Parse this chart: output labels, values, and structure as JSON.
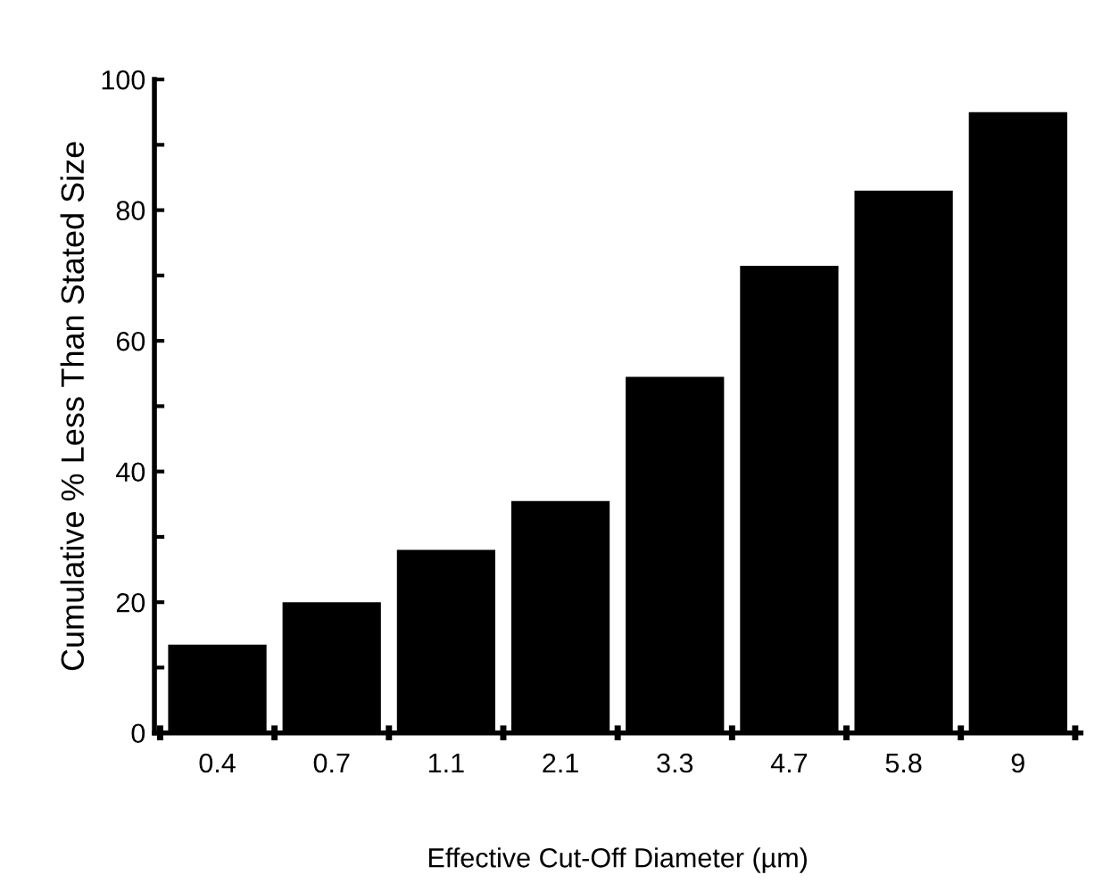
{
  "chart_data": {
    "type": "bar",
    "xlabel": "Effective Cut-Off Diameter (µm)",
    "ylabel": "Cumulative % Less Than Stated Size",
    "categories": [
      "0.4",
      "0.7",
      "1.1",
      "2.1",
      "3.3",
      "4.7",
      "5.8",
      "9"
    ],
    "values": [
      13.5,
      20,
      28,
      35.5,
      54.5,
      71.5,
      83,
      95
    ],
    "color": "#000000",
    "ylim": [
      0,
      100
    ],
    "yticks": [
      0,
      {
        "value": 10,
        "label": null
      },
      20,
      {
        "value": 30,
        "label": null
      },
      40,
      {
        "value": 50,
        "label": null
      },
      60,
      {
        "value": 70,
        "label": null
      },
      80,
      {
        "value": 90,
        "label": null
      },
      100
    ],
    "grid": false
  }
}
